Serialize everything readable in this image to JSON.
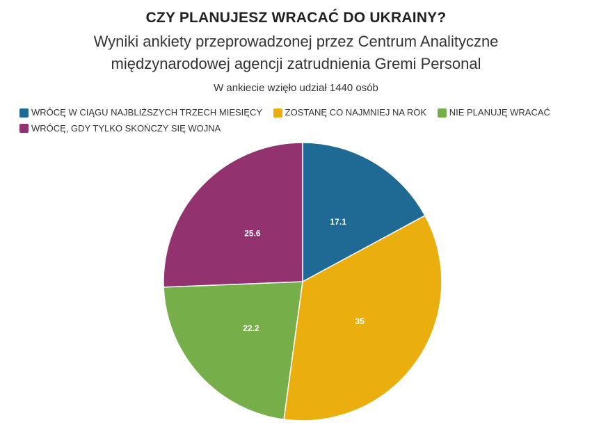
{
  "chart_data": {
    "type": "pie",
    "title": "CZY PLANUJESZ WRACAĆ DO UKRAINY?",
    "subtitle_lines": [
      "Wyniki ankiety przeprowadzonej przez Centrum Analityczne",
      "międzynarodowej agencji zatrudnienia Gremi Personal"
    ],
    "caption": "W ankiecie wzięło udział 1440 osób",
    "legend_position": "top-left",
    "categories": [
      "WRÓCĘ W CIĄGU NAJBLIŻSZYCH TRZECH MIESIĘCY",
      "ZOSTANĘ CO NAJMNIEJ NA ROK",
      "NIE PLANUJĘ WRACAĆ",
      "WRÓCĘ, GDY TYLKO SKOŃCZY SIĘ WOJNA"
    ],
    "values": [
      17.1,
      35,
      22.2,
      25.6
    ],
    "value_labels": [
      "17.1",
      "35",
      "22.2",
      "25.6"
    ],
    "colors": [
      "#1f6a94",
      "#eaae0e",
      "#76ae49",
      "#92326f"
    ],
    "start_angle_deg": 0,
    "direction": "clockwise"
  }
}
